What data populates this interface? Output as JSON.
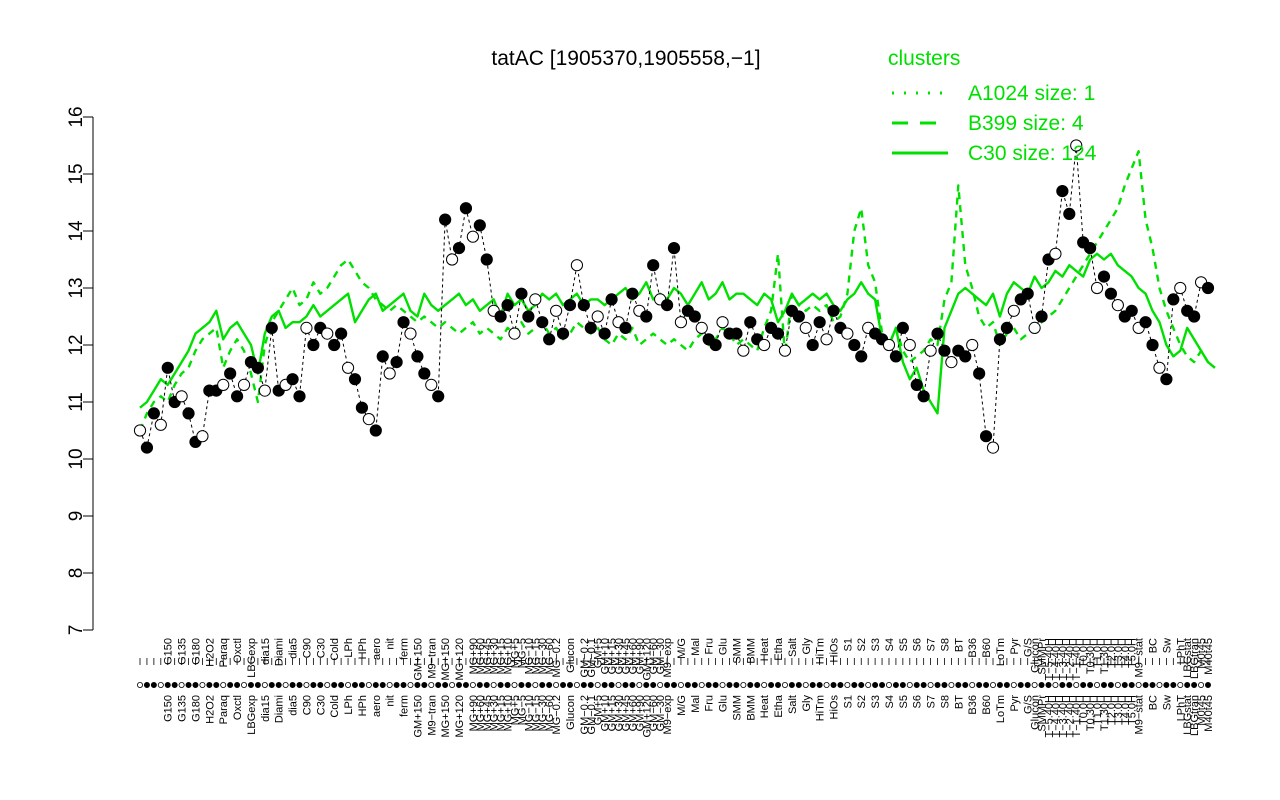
{
  "chart_data": {
    "type": "line",
    "title": "tatAC [1905370,1905558,−1]",
    "xlabel": "",
    "ylabel": "",
    "ylim": [
      7,
      16
    ],
    "yticks": [
      7,
      8,
      9,
      10,
      11,
      12,
      13,
      14,
      15,
      16
    ],
    "grid": false,
    "legend": {
      "title": "clusters",
      "position": "top-right",
      "color": "#00e000",
      "entries": [
        {
          "label": "A1024 size: 1",
          "style": "dotted"
        },
        {
          "label": "B399 size: 4",
          "style": "dashed"
        },
        {
          "label": "C30 size: 124",
          "style": "solid"
        }
      ]
    },
    "x_count": 155,
    "category_labels": [
      {
        "i": 4,
        "label": "G150"
      },
      {
        "i": 6,
        "label": "G135"
      },
      {
        "i": 8,
        "label": "G180"
      },
      {
        "i": 10,
        "label": "H2O2"
      },
      {
        "i": 12,
        "label": "Paraq"
      },
      {
        "i": 14,
        "label": "Oxctl"
      },
      {
        "i": 16,
        "label": "LBGexp"
      },
      {
        "i": 18,
        "label": "dia15"
      },
      {
        "i": 20,
        "label": "Diami"
      },
      {
        "i": 22,
        "label": "dia5"
      },
      {
        "i": 24,
        "label": "C90"
      },
      {
        "i": 26,
        "label": "C30"
      },
      {
        "i": 28,
        "label": "Cold"
      },
      {
        "i": 30,
        "label": "LPh"
      },
      {
        "i": 32,
        "label": "HPh"
      },
      {
        "i": 34,
        "label": "aero"
      },
      {
        "i": 36,
        "label": "nit"
      },
      {
        "i": 38,
        "label": "ferm"
      },
      {
        "i": 40,
        "label": "GM+150"
      },
      {
        "i": 42,
        "label": "M9−tran"
      },
      {
        "i": 44,
        "label": "MG+150"
      },
      {
        "i": 46,
        "label": "MG+120"
      },
      {
        "i": 48,
        "label": "MG+90"
      },
      {
        "i": 49,
        "label": "MG+60"
      },
      {
        "i": 50,
        "label": "MG+45"
      },
      {
        "i": 51,
        "label": "MG+30"
      },
      {
        "i": 52,
        "label": "MG+15"
      },
      {
        "i": 53,
        "label": "MG+10"
      },
      {
        "i": 54,
        "label": "MG+5"
      },
      {
        "i": 55,
        "label": "MG−5"
      },
      {
        "i": 56,
        "label": "MG−10"
      },
      {
        "i": 57,
        "label": "MG−15"
      },
      {
        "i": 58,
        "label": "MG−30"
      },
      {
        "i": 59,
        "label": "MG−60"
      },
      {
        "i": 60,
        "label": "MG−0.2"
      },
      {
        "i": 62,
        "label": "Glucon"
      },
      {
        "i": 64,
        "label": "GM−0.2"
      },
      {
        "i": 65,
        "label": "GM−0.1"
      },
      {
        "i": 66,
        "label": "GM+5"
      },
      {
        "i": 67,
        "label": "GM+10"
      },
      {
        "i": 68,
        "label": "GM+15"
      },
      {
        "i": 69,
        "label": "GM+30"
      },
      {
        "i": 70,
        "label": "GM+45"
      },
      {
        "i": 71,
        "label": "GM+60"
      },
      {
        "i": 72,
        "label": "GM+90"
      },
      {
        "i": 73,
        "label": "GM+120"
      },
      {
        "i": 74,
        "label": "GM−60"
      },
      {
        "i": 75,
        "label": "GM−30"
      },
      {
        "i": 76,
        "label": "M9−exp"
      },
      {
        "i": 78,
        "label": "M/G"
      },
      {
        "i": 80,
        "label": "Mal"
      },
      {
        "i": 82,
        "label": "Fru"
      },
      {
        "i": 84,
        "label": "Glu"
      },
      {
        "i": 86,
        "label": "SMM"
      },
      {
        "i": 88,
        "label": "BMM"
      },
      {
        "i": 90,
        "label": "Heat"
      },
      {
        "i": 92,
        "label": "Etha"
      },
      {
        "i": 94,
        "label": "Salt"
      },
      {
        "i": 96,
        "label": "Gly"
      },
      {
        "i": 98,
        "label": "HiTm"
      },
      {
        "i": 100,
        "label": "HiOs"
      },
      {
        "i": 102,
        "label": "S1"
      },
      {
        "i": 104,
        "label": "S2"
      },
      {
        "i": 106,
        "label": "S3"
      },
      {
        "i": 108,
        "label": "S4"
      },
      {
        "i": 110,
        "label": "S5"
      },
      {
        "i": 112,
        "label": "S6"
      },
      {
        "i": 114,
        "label": "S7"
      },
      {
        "i": 116,
        "label": "S8"
      },
      {
        "i": 118,
        "label": "BT"
      },
      {
        "i": 120,
        "label": "B36"
      },
      {
        "i": 122,
        "label": "B60"
      },
      {
        "i": 124,
        "label": "LoTm"
      },
      {
        "i": 126,
        "label": "Pyr"
      },
      {
        "i": 128,
        "label": "G/S"
      },
      {
        "i": 129,
        "label": "Glucon"
      },
      {
        "i": 130,
        "label": "SMMPr"
      },
      {
        "i": 131,
        "label": "T−5.40H"
      },
      {
        "i": 132,
        "label": "T−4.40H"
      },
      {
        "i": 133,
        "label": "T−3.40H"
      },
      {
        "i": 134,
        "label": "T−2.40H"
      },
      {
        "i": 135,
        "label": "T−1.40H"
      },
      {
        "i": 136,
        "label": "T0.0H"
      },
      {
        "i": 137,
        "label": "T0.30H"
      },
      {
        "i": 138,
        "label": "T1.0H"
      },
      {
        "i": 139,
        "label": "T1.30H"
      },
      {
        "i": 140,
        "label": "T2.0H"
      },
      {
        "i": 141,
        "label": "T3.0H"
      },
      {
        "i": 142,
        "label": "T4.0H"
      },
      {
        "i": 143,
        "label": "T5.0H"
      },
      {
        "i": 144,
        "label": "M9−stat"
      },
      {
        "i": 146,
        "label": "BC"
      },
      {
        "i": 148,
        "label": "Sw"
      },
      {
        "i": 150,
        "label": "LPhT"
      },
      {
        "i": 151,
        "label": "LBGstat"
      },
      {
        "i": 152,
        "label": "LBGtran"
      },
      {
        "i": 153,
        "label": "M0t45"
      },
      {
        "i": 154,
        "label": "M40t45"
      }
    ],
    "series": [
      {
        "style": "solid",
        "values": [
          10.9,
          11.0,
          11.2,
          11.4,
          11.3,
          11.5,
          11.7,
          11.9,
          12.2,
          12.3,
          12.4,
          12.6,
          12.1,
          12.3,
          12.4,
          12.2,
          12.0,
          11.5,
          12.2,
          12.5,
          12.6,
          12.3,
          12.4,
          12.4,
          12.5,
          12.7,
          12.5,
          12.6,
          12.7,
          12.8,
          12.9,
          12.4,
          12.6,
          12.8,
          12.9,
          12.6,
          12.7,
          12.8,
          12.9,
          12.6,
          12.5,
          12.9,
          12.7,
          12.6,
          12.7,
          12.8,
          12.9,
          12.7,
          12.8,
          12.6,
          12.7,
          12.8,
          12.5,
          12.9,
          12.7,
          12.8,
          12.6,
          12.7,
          12.9,
          12.8,
          12.9,
          12.7,
          12.8,
          12.9,
          12.7,
          12.8,
          12.8,
          12.7,
          12.8,
          12.9,
          13.0,
          12.8,
          12.9,
          13.1,
          12.8,
          12.9,
          12.8,
          13.0,
          12.9,
          12.7,
          12.9,
          13.1,
          12.8,
          12.9,
          13.1,
          12.8,
          12.9,
          12.9,
          12.8,
          12.7,
          12.9,
          12.8,
          12.4,
          12.6,
          12.9,
          12.7,
          12.8,
          12.9,
          12.8,
          12.9,
          12.7,
          12.6,
          12.8,
          12.9,
          13.1,
          12.9,
          12.8,
          12.1,
          12.0,
          12.3,
          11.7,
          11.4,
          11.6,
          11.2,
          11.0,
          10.8,
          12.3,
          12.6,
          12.9,
          13.0,
          12.9,
          12.8,
          12.7,
          12.9,
          12.5,
          12.9,
          13.1,
          13.0,
          12.9,
          13.2,
          13.0,
          13.1,
          13.3,
          13.2,
          13.4,
          13.3,
          13.2,
          13.5,
          13.6,
          13.5,
          13.6,
          13.4,
          13.3,
          13.2,
          13.0,
          12.9,
          12.6,
          12.4,
          12.0,
          11.8,
          11.9,
          12.3,
          12.1,
          11.9,
          11.7,
          11.6
        ]
      },
      {
        "style": "dashed",
        "values": [
          10.5,
          10.8,
          11.0,
          11.1,
          11.0,
          11.3,
          11.5,
          11.6,
          11.9,
          12.1,
          12.2,
          12.3,
          11.6,
          11.9,
          12.1,
          11.9,
          11.5,
          11.0,
          12.0,
          12.4,
          12.6,
          12.8,
          13.0,
          12.7,
          12.8,
          13.1,
          12.9,
          13.0,
          13.2,
          13.4,
          13.5,
          13.3,
          13.1,
          13.0,
          12.8,
          12.7,
          12.6,
          12.7,
          12.6,
          12.5,
          12.4,
          12.5,
          12.4,
          12.3,
          12.4,
          12.3,
          12.2,
          12.3,
          12.4,
          12.2,
          12.3,
          12.2,
          12.1,
          12.3,
          12.2,
          12.4,
          12.2,
          12.3,
          12.4,
          12.2,
          12.3,
          12.1,
          12.2,
          12.4,
          12.3,
          12.2,
          12.3,
          12.1,
          12.0,
          12.2,
          12.1,
          12.3,
          12.0,
          12.1,
          12.2,
          12.1,
          12.0,
          12.1,
          12.0,
          11.9,
          12.1,
          12.2,
          12.0,
          12.1,
          12.3,
          12.2,
          12.0,
          12.1,
          12.0,
          11.9,
          12.3,
          12.6,
          13.6,
          11.8,
          12.9,
          12.7,
          12.6,
          12.7,
          12.6,
          12.7,
          12.4,
          12.5,
          12.9,
          14.0,
          14.4,
          13.4,
          13.1,
          12.2,
          12.0,
          12.3,
          11.9,
          11.7,
          11.8,
          11.9,
          12.1,
          12.0,
          12.8,
          13.1,
          14.8,
          13.4,
          13.0,
          12.5,
          12.3,
          12.4,
          12.0,
          12.2,
          12.3,
          12.1,
          12.2,
          12.3,
          12.4,
          12.5,
          12.6,
          12.8,
          13.0,
          13.2,
          13.4,
          13.6,
          13.8,
          14.0,
          14.2,
          14.4,
          14.8,
          15.1,
          15.4,
          14.2,
          13.7,
          13.0,
          12.6,
          12.3,
          12.0,
          11.8,
          11.7,
          11.9,
          11.7,
          11.6
        ]
      },
      {
        "style": "dotted-points",
        "values": [
          10.5,
          10.2,
          10.8,
          10.6,
          11.6,
          11.0,
          11.1,
          10.8,
          10.3,
          10.4,
          11.2,
          11.2,
          11.3,
          11.5,
          11.1,
          11.3,
          11.7,
          11.6,
          11.2,
          12.3,
          11.2,
          11.3,
          11.4,
          11.1,
          12.3,
          12.0,
          12.3,
          12.2,
          12.0,
          12.2,
          11.6,
          11.4,
          10.9,
          10.7,
          10.5,
          11.8,
          11.5,
          11.7,
          12.4,
          12.2,
          11.8,
          11.5,
          11.3,
          11.1,
          14.2,
          13.5,
          13.7,
          14.4,
          13.9,
          14.1,
          13.5,
          12.6,
          12.5,
          12.7,
          12.2,
          12.9,
          12.5,
          12.8,
          12.4,
          12.1,
          12.6,
          12.2,
          12.7,
          13.4,
          12.7,
          12.3,
          12.5,
          12.2,
          12.8,
          12.4,
          12.3,
          12.9,
          12.6,
          12.5,
          13.4,
          12.8,
          12.7,
          13.7,
          12.4,
          12.6,
          12.5,
          12.3,
          12.1,
          12.0,
          12.4,
          12.2,
          12.2,
          11.9,
          12.4,
          12.1,
          12.0,
          12.3,
          12.2,
          11.9,
          12.6,
          12.5,
          12.3,
          12.0,
          12.4,
          12.1,
          12.6,
          12.3,
          12.2,
          12.0,
          11.8,
          12.3,
          12.2,
          12.1,
          12.0,
          11.8,
          12.3,
          12.0,
          11.3,
          11.1,
          11.9,
          12.2,
          11.9,
          11.7,
          11.9,
          11.8,
          12.0,
          11.5,
          10.4,
          10.2,
          12.1,
          12.3,
          12.6,
          12.8,
          12.9,
          12.3,
          12.5,
          13.5,
          13.6,
          14.7,
          14.3,
          15.5,
          13.8,
          13.7,
          13.0,
          13.2,
          12.9,
          12.7,
          12.5,
          12.6,
          12.3,
          12.4,
          12.0,
          11.6,
          11.4,
          12.8,
          13.0,
          12.6,
          12.5,
          13.1,
          13.0
        ]
      }
    ]
  }
}
